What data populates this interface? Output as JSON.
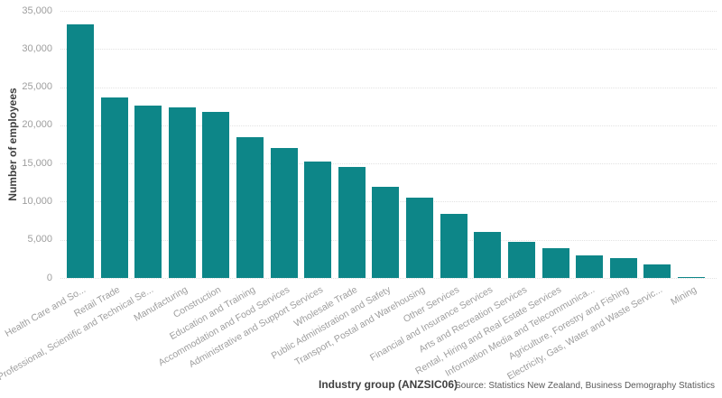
{
  "chart_data": {
    "type": "bar",
    "title": "",
    "xlabel": "Industry group (ANZSIC06)",
    "ylabel": "Number of employees",
    "source": "Source: Statistics New Zealand, Business Demography Statistics",
    "legend": "none",
    "grid": "horizontal-dotted",
    "ylim": [
      0,
      35000
    ],
    "ytick_interval": 5000,
    "ytick_labels": [
      "0",
      "5,000",
      "10,000",
      "15,000",
      "20,000",
      "25,000",
      "30,000",
      "35,000"
    ],
    "bar_color": "#0d8688",
    "categories": [
      "Health Care and So...",
      "Retail Trade",
      "Professional, Scientific and Technical Se...",
      "Manufacturing",
      "Construction",
      "Education and Training",
      "Accommodation and Food Services",
      "Administrative and Support Services",
      "Wholesale Trade",
      "Public Administration and Safety",
      "Transport, Postal and Warehousing",
      "Other Services",
      "Financial and Insurance Services",
      "Arts and Recreation Services",
      "Rental, Hiring and Real Estate Services",
      "Information Media and Telecommunica...",
      "Agriculture, Forestry and Fishing",
      "Electricity, Gas, Water and Waste Servic...",
      "Mining"
    ],
    "values": [
      33200,
      23600,
      22600,
      22300,
      21700,
      18400,
      17000,
      15200,
      14500,
      12000,
      10500,
      8400,
      6000,
      4700,
      3900,
      3000,
      2600,
      1800,
      150
    ]
  },
  "colors": {
    "bar": "#0d8688",
    "axis_title": "#3f3f3f",
    "tick_label": "#9e9e9e",
    "gridline": "#e2e2e2",
    "source_text": "#5a5a5a",
    "background": "#ffffff"
  }
}
